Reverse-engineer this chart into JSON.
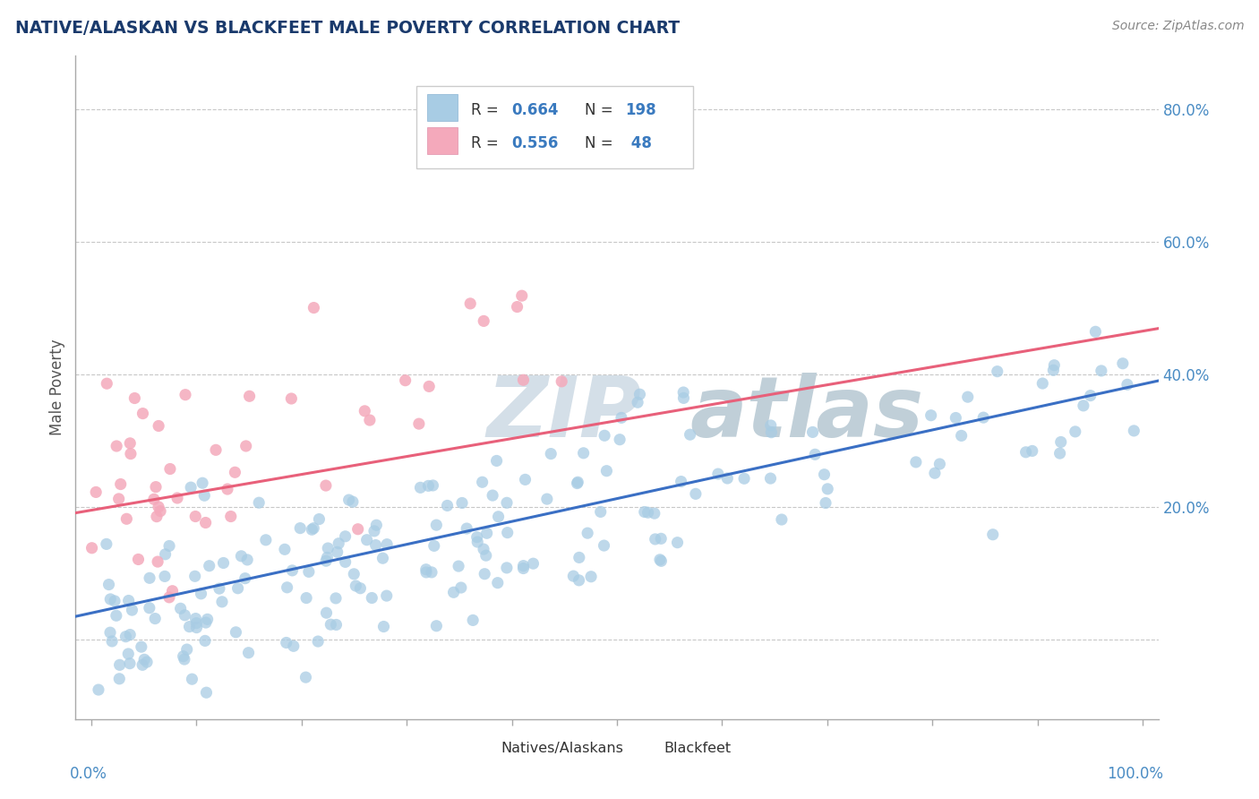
{
  "title": "NATIVE/ALASKAN VS BLACKFEET MALE POVERTY CORRELATION CHART",
  "source_text": "Source: ZipAtlas.com",
  "ylabel": "Male Poverty",
  "blue_color": "#a8cce4",
  "pink_color": "#f4a9bb",
  "blue_line_color": "#3a6fc4",
  "pink_line_color": "#e8607a",
  "title_color": "#1a3a6c",
  "watermark_zip_color": "#d0dce8",
  "watermark_atlas_color": "#c8d8ea",
  "background_color": "#ffffff",
  "grid_color": "#c8c8c8",
  "R_blue": 0.664,
  "N_blue": 198,
  "R_pink": 0.556,
  "N_pink": 48,
  "legend_color": "#3a7abf",
  "ytick_color": "#4a8cc4"
}
